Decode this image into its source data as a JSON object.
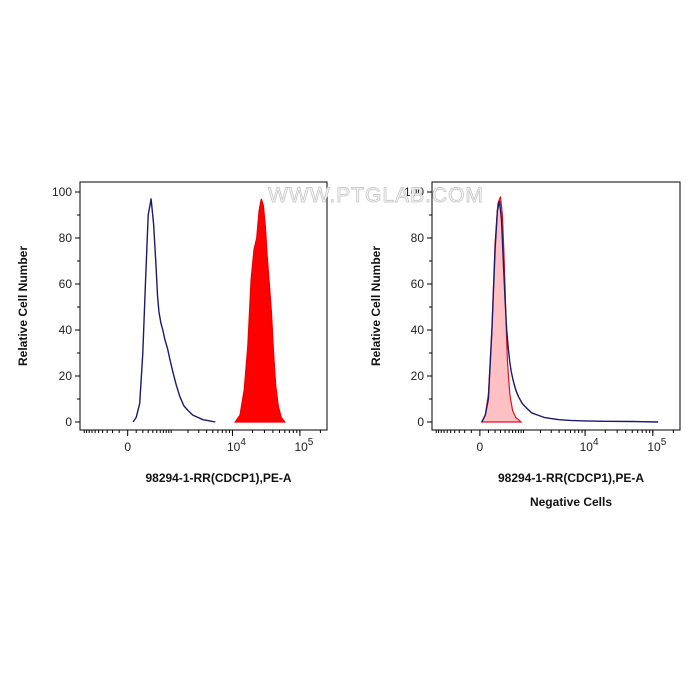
{
  "watermark": "WWW.PTGLAB.COM",
  "colors": {
    "stained_fill": "#ff0000",
    "stained_line": "#ee0000",
    "control_line": "#1a1a6e",
    "negative_fill": "#ffc0c4",
    "negative_line": "#e01020",
    "axis": "#000000"
  },
  "chart_data": [
    {
      "type": "area",
      "xlabel": "98294-1-RR(CDCP1),PE-A",
      "ylabel": "Relative Cell Number",
      "caption": "",
      "x_scale": "biexponential",
      "xlim": [
        -1200,
        250000
      ],
      "ylim": [
        0,
        100
      ],
      "yticks": [
        0,
        20,
        40,
        60,
        80,
        100
      ],
      "xticks": [
        {
          "value": 0,
          "base": "0",
          "exp": ""
        },
        {
          "value": 10000,
          "base": "10",
          "exp": "4"
        },
        {
          "value": 100000,
          "base": "10",
          "exp": "5"
        }
      ],
      "series": [
        {
          "role": "control",
          "style": "line",
          "x": [
            60,
            100,
            150,
            200,
            250,
            300,
            360,
            420,
            480,
            520,
            560,
            620,
            680,
            750,
            850,
            950,
            1100,
            1250,
            1450,
            1700,
            2000,
            2400,
            2900,
            3500,
            4500,
            5500
          ],
          "y": [
            0,
            2,
            8,
            30,
            62,
            90,
            97,
            86,
            68,
            55,
            48,
            43,
            40,
            36,
            32,
            27,
            21,
            16,
            11,
            7,
            5,
            3,
            2,
            1,
            0.5,
            0
          ]
        },
        {
          "role": "stained",
          "style": "filled",
          "x": [
            11000,
            13000,
            15000,
            17000,
            19000,
            21000,
            23000,
            25000,
            27000,
            29000,
            31000,
            33000,
            35000,
            38000,
            41000,
            44000,
            48000,
            53000,
            60000
          ],
          "y": [
            0,
            3,
            14,
            33,
            62,
            75,
            80,
            92,
            97,
            94,
            85,
            72,
            62,
            48,
            30,
            16,
            7,
            2,
            0
          ]
        }
      ]
    },
    {
      "type": "area",
      "xlabel": "98294-1-RR(CDCP1),PE-A",
      "ylabel": "Relative Cell Number",
      "caption": "Negative Cells",
      "x_scale": "biexponential",
      "xlim": [
        -1200,
        250000
      ],
      "ylim": [
        0,
        100
      ],
      "yticks": [
        0,
        20,
        40,
        60,
        80,
        100
      ],
      "xticks": [
        {
          "value": 0,
          "base": "0",
          "exp": ""
        },
        {
          "value": 10000,
          "base": "10",
          "exp": "4"
        },
        {
          "value": 100000,
          "base": "10",
          "exp": "5"
        }
      ],
      "series": [
        {
          "role": "negative",
          "style": "filled",
          "x": [
            20,
            60,
            100,
            150,
            200,
            250,
            300,
            340,
            370,
            400,
            430,
            460,
            520,
            600,
            700,
            800,
            900
          ],
          "y": [
            0,
            3,
            12,
            40,
            78,
            95,
            98,
            90,
            75,
            58,
            40,
            26,
            12,
            5,
            2,
            1,
            0
          ]
        },
        {
          "role": "stained",
          "style": "line",
          "x": [
            20,
            60,
            100,
            150,
            200,
            240,
            280,
            320,
            360,
            400,
            440,
            480,
            520,
            560,
            620,
            700,
            800,
            950,
            1150,
            1400,
            1800,
            2300,
            3000,
            4000,
            6000,
            10000,
            20000,
            50000,
            120000
          ],
          "y": [
            0,
            3,
            10,
            40,
            75,
            92,
            96,
            88,
            70,
            53,
            40,
            32,
            26,
            22,
            18,
            14,
            11,
            8,
            6,
            4,
            3,
            2,
            1.5,
            1,
            0.7,
            0.5,
            0.3,
            0.2,
            0
          ]
        }
      ]
    }
  ]
}
